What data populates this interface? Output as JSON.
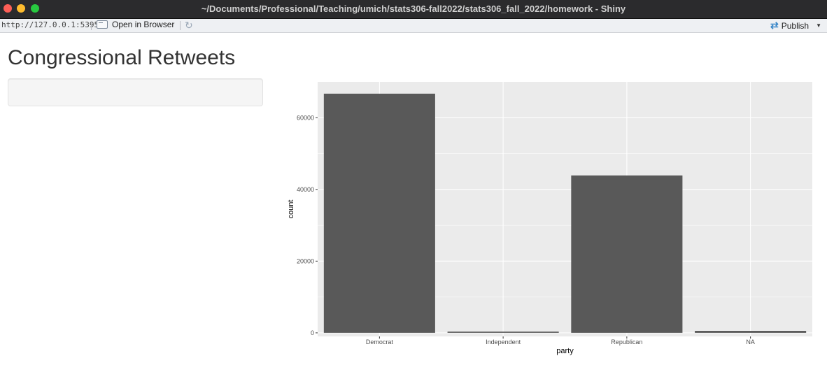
{
  "window": {
    "title": "~/Documents/Professional/Teaching/umich/stats306-fall2022/stats306_fall_2022/homework - Shiny"
  },
  "toolbar": {
    "url": "http://127.0.0.1:5395",
    "open_browser_label": "Open in Browser",
    "publish_label": "Publish",
    "icons": [
      "open-browser-icon",
      "refresh-icon",
      "publish-icon",
      "chevron-down-icon"
    ]
  },
  "page": {
    "title": "Congressional Retweets"
  },
  "chart_data": {
    "type": "bar",
    "categories": [
      "Democrat",
      "Independent",
      "Republican",
      "NA"
    ],
    "values": [
      66700,
      350,
      43900,
      550
    ],
    "xlabel": "party",
    "ylabel": "count",
    "yticks": [
      0,
      20000,
      40000,
      60000
    ],
    "ytick_labels": [
      "0",
      "20000",
      "40000",
      "60000"
    ],
    "ylim": [
      -1000,
      70000
    ],
    "grid": true,
    "colors": {
      "panel": "#ebebeb",
      "bar": "#595959",
      "grid": "#ffffff"
    }
  }
}
